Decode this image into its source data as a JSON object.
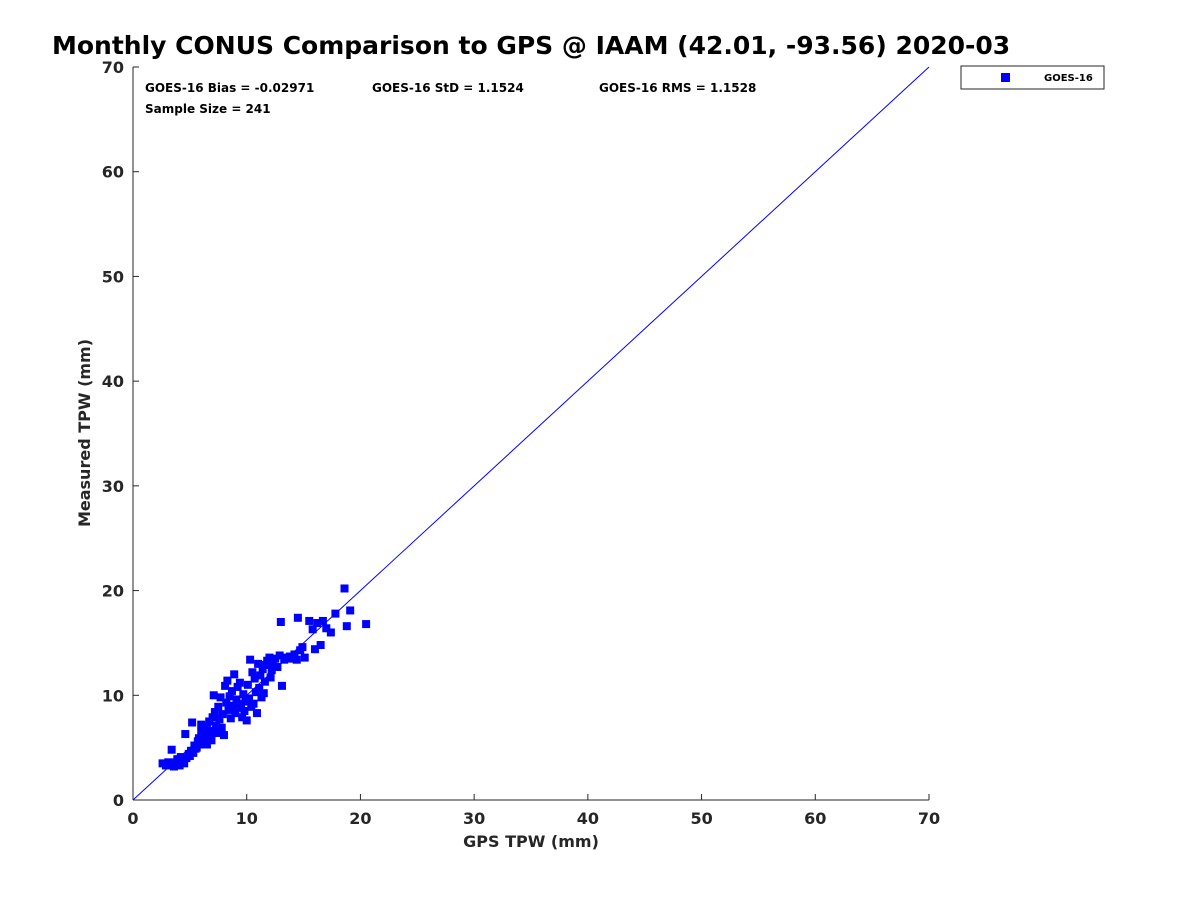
{
  "chart_data": {
    "type": "scatter",
    "title": "Monthly CONUS Comparison to GPS @ IAAM (42.01, -93.56) 2020-03",
    "xlabel": "GPS TPW (mm)",
    "ylabel": "Measured TPW (mm)",
    "xlim": [
      0,
      70
    ],
    "ylim": [
      0,
      70
    ],
    "xticks": [
      0,
      10,
      20,
      30,
      40,
      50,
      60,
      70
    ],
    "yticks": [
      0,
      10,
      20,
      30,
      40,
      50,
      60,
      70
    ],
    "grid": false,
    "legend_position": "top-right (outside plot)",
    "reference_line": {
      "from": [
        0,
        0
      ],
      "to": [
        70,
        70
      ],
      "color": "#0000ff"
    },
    "stats": {
      "bias": "GOES-16 Bias = -0.02971",
      "std": "GOES-16 StD = 1.1524",
      "rms": "GOES-16 RMS = 1.1528",
      "sample_size": "Sample Size = 241"
    },
    "series": [
      {
        "name": "GOES-16",
        "color": "#0000ff",
        "marker": "square",
        "points": [
          [
            2.6,
            3.5
          ],
          [
            2.9,
            3.3
          ],
          [
            3.1,
            3.6
          ],
          [
            3.3,
            3.4
          ],
          [
            3.4,
            4.8
          ],
          [
            3.6,
            3.2
          ],
          [
            3.8,
            3.6
          ],
          [
            3.9,
            3.9
          ],
          [
            4.1,
            3.3
          ],
          [
            4.2,
            4.1
          ],
          [
            4.4,
            3.7
          ],
          [
            4.5,
            3.5
          ],
          [
            4.6,
            6.3
          ],
          [
            4.7,
            4.0
          ],
          [
            4.9,
            4.4
          ],
          [
            5.0,
            4.2
          ],
          [
            5.1,
            4.7
          ],
          [
            5.2,
            7.4
          ],
          [
            5.3,
            4.5
          ],
          [
            5.4,
            5.2
          ],
          [
            5.5,
            4.9
          ],
          [
            5.6,
            5.0
          ],
          [
            5.7,
            5.6
          ],
          [
            5.8,
            5.9
          ],
          [
            5.9,
            5.3
          ],
          [
            6.0,
            6.5
          ],
          [
            6.0,
            7.2
          ],
          [
            6.1,
            5.5
          ],
          [
            6.2,
            6.1
          ],
          [
            6.3,
            5.8
          ],
          [
            6.4,
            6.8
          ],
          [
            6.5,
            7.0
          ],
          [
            6.5,
            5.3
          ],
          [
            6.6,
            6.2
          ],
          [
            6.7,
            7.5
          ],
          [
            6.8,
            6.0
          ],
          [
            6.9,
            5.7
          ],
          [
            7.0,
            7.9
          ],
          [
            7.0,
            6.6
          ],
          [
            7.1,
            10.0
          ],
          [
            7.2,
            8.4
          ],
          [
            7.3,
            7.1
          ],
          [
            7.4,
            6.4
          ],
          [
            7.5,
            8.9
          ],
          [
            7.6,
            7.7
          ],
          [
            7.7,
            9.8
          ],
          [
            7.8,
            6.9
          ],
          [
            7.9,
            8.2
          ],
          [
            8.0,
            6.2
          ],
          [
            8.1,
            10.9
          ],
          [
            8.2,
            9.3
          ],
          [
            8.3,
            11.4
          ],
          [
            8.4,
            8.6
          ],
          [
            8.5,
            9.9
          ],
          [
            8.6,
            7.8
          ],
          [
            8.7,
            10.4
          ],
          [
            8.8,
            9.0
          ],
          [
            8.9,
            12.0
          ],
          [
            9.0,
            8.3
          ],
          [
            9.1,
            9.6
          ],
          [
            9.2,
            10.8
          ],
          [
            9.3,
            8.8
          ],
          [
            9.4,
            11.2
          ],
          [
            9.5,
            9.1
          ],
          [
            9.6,
            7.9
          ],
          [
            9.7,
            10.1
          ],
          [
            9.8,
            8.5
          ],
          [
            9.9,
            9.4
          ],
          [
            10.0,
            7.6
          ],
          [
            10.1,
            11.0
          ],
          [
            10.2,
            9.7
          ],
          [
            10.3,
            13.4
          ],
          [
            10.4,
            8.9
          ],
          [
            10.5,
            12.2
          ],
          [
            10.6,
            9.2
          ],
          [
            10.7,
            11.6
          ],
          [
            10.8,
            10.3
          ],
          [
            10.9,
            8.3
          ],
          [
            11.0,
            13.0
          ],
          [
            11.1,
            10.7
          ],
          [
            11.2,
            11.9
          ],
          [
            11.3,
            9.8
          ],
          [
            11.4,
            12.5
          ],
          [
            11.5,
            10.2
          ],
          [
            11.6,
            11.3
          ],
          [
            11.7,
            12.9
          ],
          [
            11.8,
            13.3
          ],
          [
            12.0,
            13.6
          ],
          [
            12.1,
            11.7
          ],
          [
            12.2,
            12.4
          ],
          [
            12.3,
            13.1
          ],
          [
            12.5,
            13.5
          ],
          [
            12.7,
            12.7
          ],
          [
            12.9,
            13.8
          ],
          [
            13.0,
            17.0
          ],
          [
            13.1,
            10.9
          ],
          [
            13.3,
            13.4
          ],
          [
            13.5,
            13.6
          ],
          [
            13.8,
            13.7
          ],
          [
            14.0,
            13.5
          ],
          [
            14.2,
            13.9
          ],
          [
            14.4,
            13.4
          ],
          [
            14.5,
            17.4
          ],
          [
            14.7,
            14.3
          ],
          [
            14.9,
            14.6
          ],
          [
            15.1,
            13.6
          ],
          [
            15.5,
            17.1
          ],
          [
            15.8,
            16.3
          ],
          [
            16.0,
            14.4
          ],
          [
            16.2,
            16.9
          ],
          [
            16.5,
            14.8
          ],
          [
            16.7,
            17.1
          ],
          [
            17.0,
            16.4
          ],
          [
            17.4,
            16.0
          ],
          [
            17.8,
            17.8
          ],
          [
            18.6,
            20.2
          ],
          [
            18.8,
            16.6
          ],
          [
            19.1,
            18.1
          ],
          [
            20.5,
            16.8
          ]
        ]
      }
    ]
  }
}
